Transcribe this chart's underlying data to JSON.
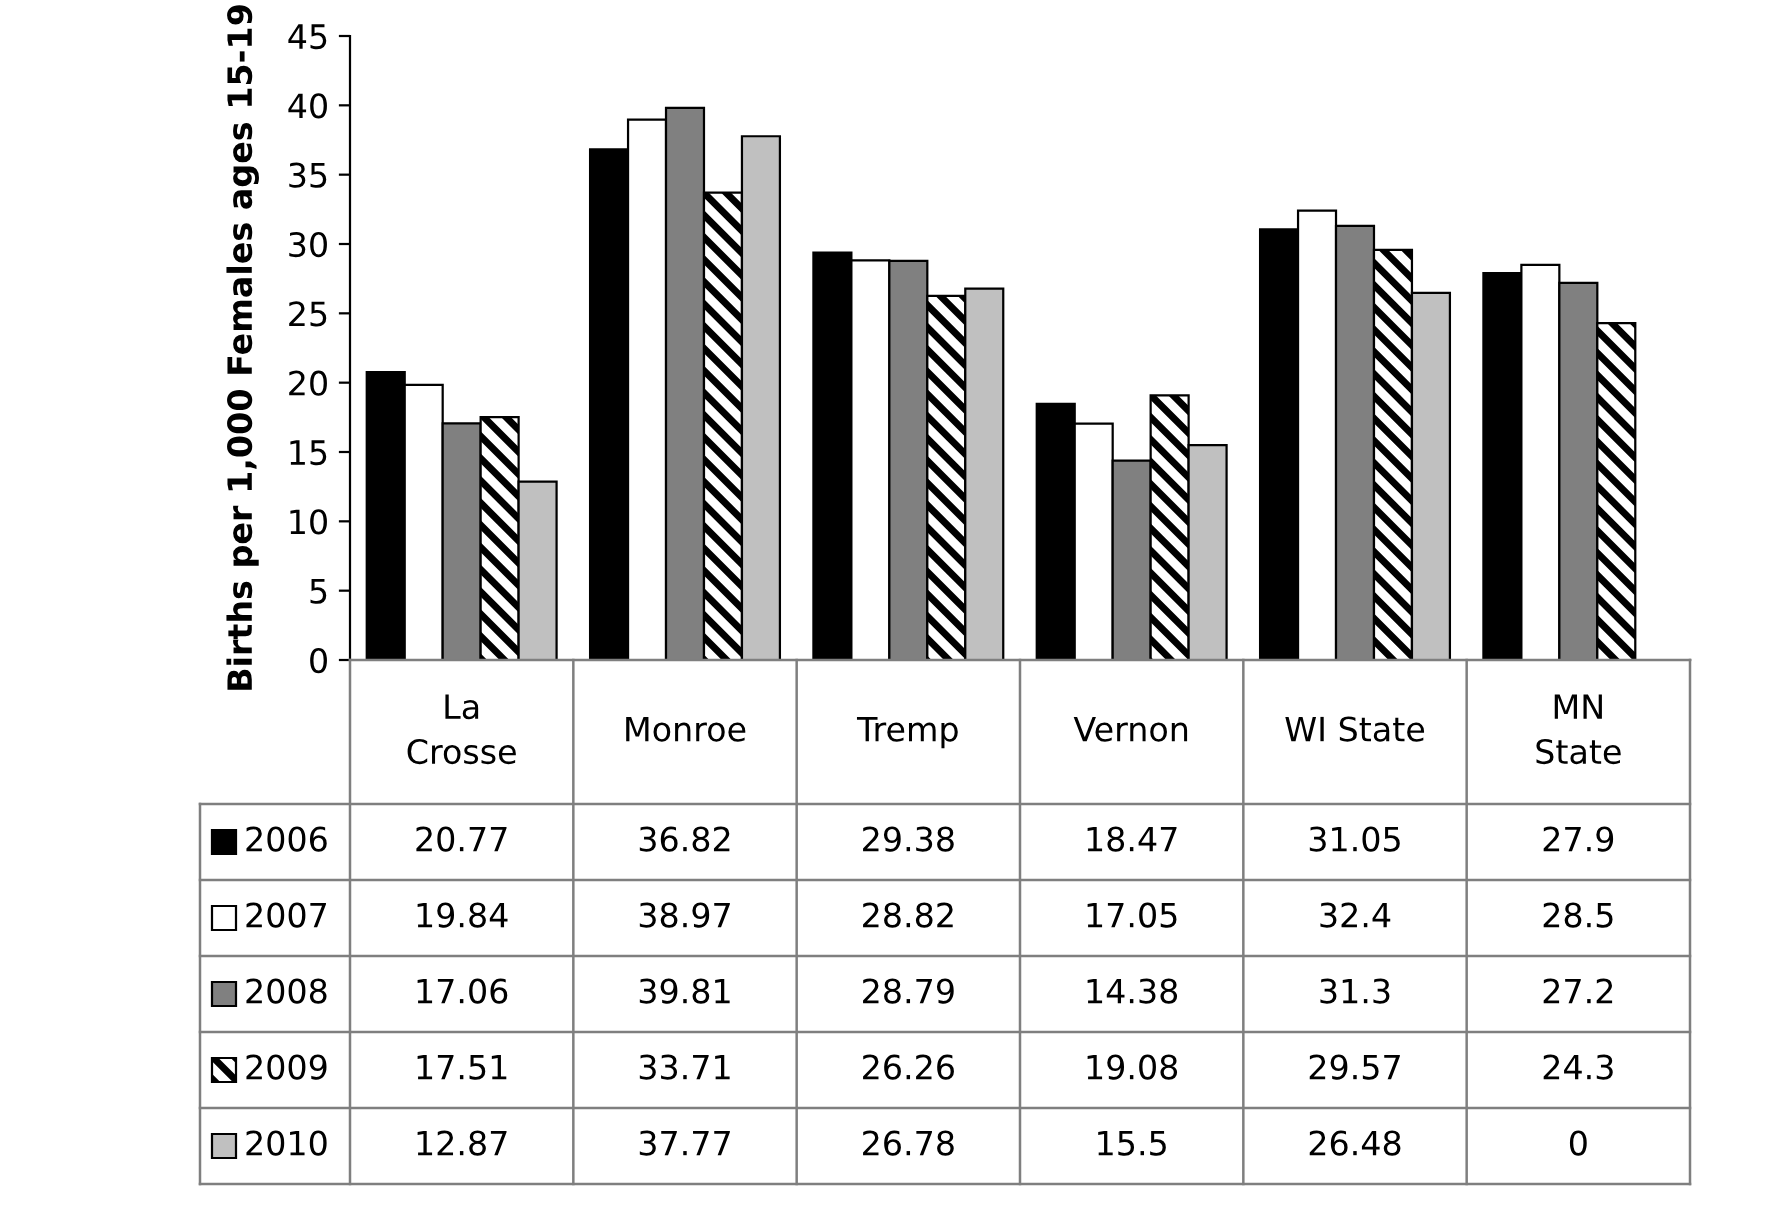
{
  "chart_data": {
    "type": "bar",
    "ylabel": "Births per 1,000 Females ages 15-19",
    "categories": [
      "La\nCrosse",
      "Monroe",
      "Tremp",
      "Vernon",
      "WI State",
      "MN\nState"
    ],
    "series": [
      {
        "name": "2006",
        "color": "#000000",
        "values": [
          20.77,
          36.82,
          29.38,
          18.47,
          31.05,
          27.9
        ]
      },
      {
        "name": "2007",
        "color": "#ffffff",
        "values": [
          19.84,
          38.97,
          28.82,
          17.05,
          32.4,
          28.5
        ]
      },
      {
        "name": "2008",
        "color": "#808080",
        "values": [
          17.06,
          39.81,
          28.79,
          14.38,
          31.3,
          27.2
        ]
      },
      {
        "name": "2009",
        "color": "#000000",
        "values": [
          17.51,
          33.71,
          26.26,
          19.08,
          29.57,
          24.3
        ]
      },
      {
        "name": "2010",
        "color": "#c0c0c0",
        "values": [
          12.87,
          37.77,
          26.78,
          15.5,
          26.48,
          0
        ]
      }
    ],
    "ylim": [
      0,
      45
    ],
    "yticks": [
      0,
      5,
      10,
      15,
      20,
      25,
      30,
      35,
      40,
      45
    ],
    "data_labels": true,
    "legend": "bottom",
    "grid": false
  }
}
